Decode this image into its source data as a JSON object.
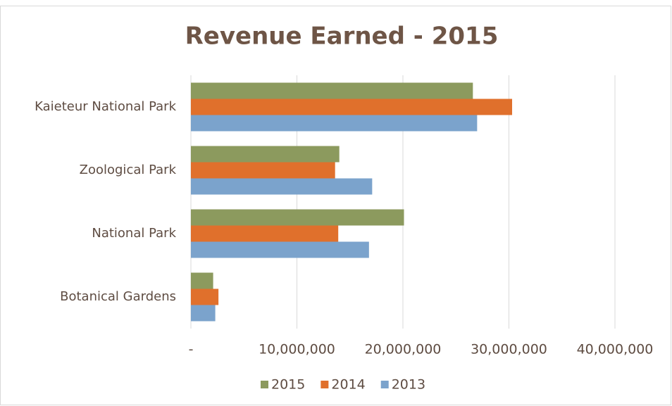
{
  "chart_data": {
    "type": "hbar",
    "title": "Revenue Earned - 2015",
    "categories": [
      "Kaieteur National Park",
      "Zoological Park",
      "National Park",
      "Botanical Gardens"
    ],
    "series": [
      {
        "name": "2015",
        "color": "#8c9a5e",
        "values": [
          26600000,
          14000000,
          20100000,
          2100000
        ]
      },
      {
        "name": "2014",
        "color": "#e0702c",
        "values": [
          30300000,
          13600000,
          13900000,
          2600000
        ]
      },
      {
        "name": "2013",
        "color": "#7ba3cc",
        "values": [
          27000000,
          17100000,
          16800000,
          2300000
        ]
      }
    ],
    "xlim": [
      0,
      40000000
    ],
    "xticks": [
      {
        "value": 0,
        "label": "-"
      },
      {
        "value": 10000000,
        "label": "10,000,000"
      },
      {
        "value": 20000000,
        "label": "20,000,000"
      },
      {
        "value": 30000000,
        "label": "30,000,000"
      },
      {
        "value": 40000000,
        "label": "40,000,000"
      }
    ],
    "grid": true,
    "legend": "bottom"
  }
}
